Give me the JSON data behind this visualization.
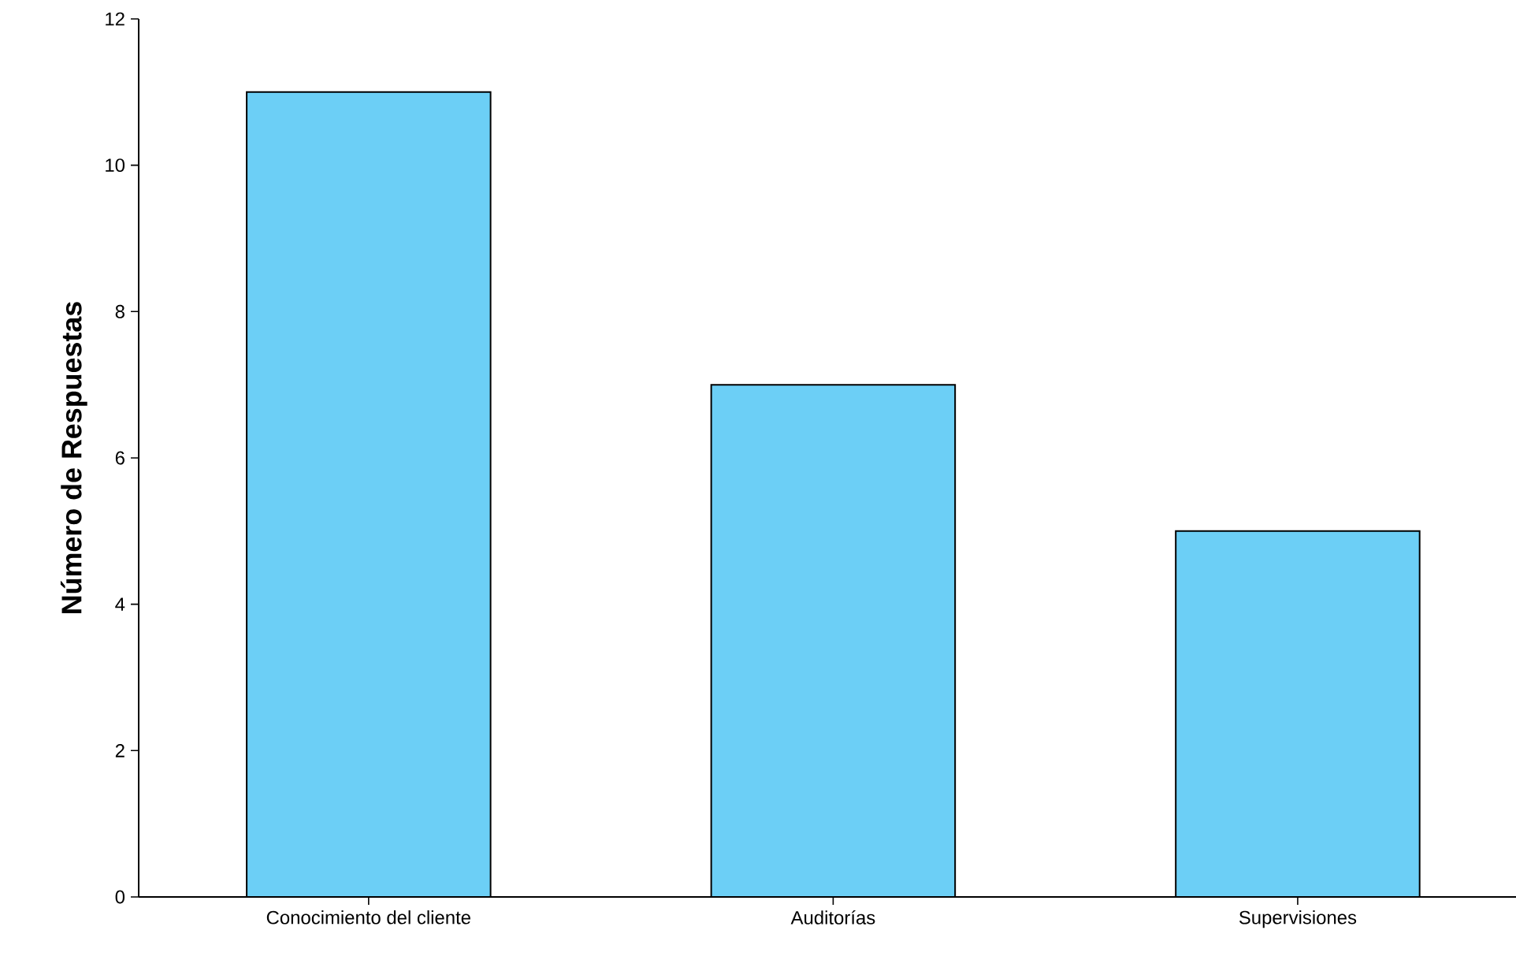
{
  "chart_data": {
    "type": "bar",
    "ylabel": "Número de Respuestas",
    "categories": [
      "Conocimiento del cliente",
      "Auditorías",
      "Supervisiones"
    ],
    "values": [
      11,
      7,
      5
    ],
    "color": "#6ccff6",
    "ylim": [
      0,
      12
    ],
    "yticks": [
      0,
      2,
      4,
      6,
      8,
      10,
      12
    ],
    "grid": false
  }
}
